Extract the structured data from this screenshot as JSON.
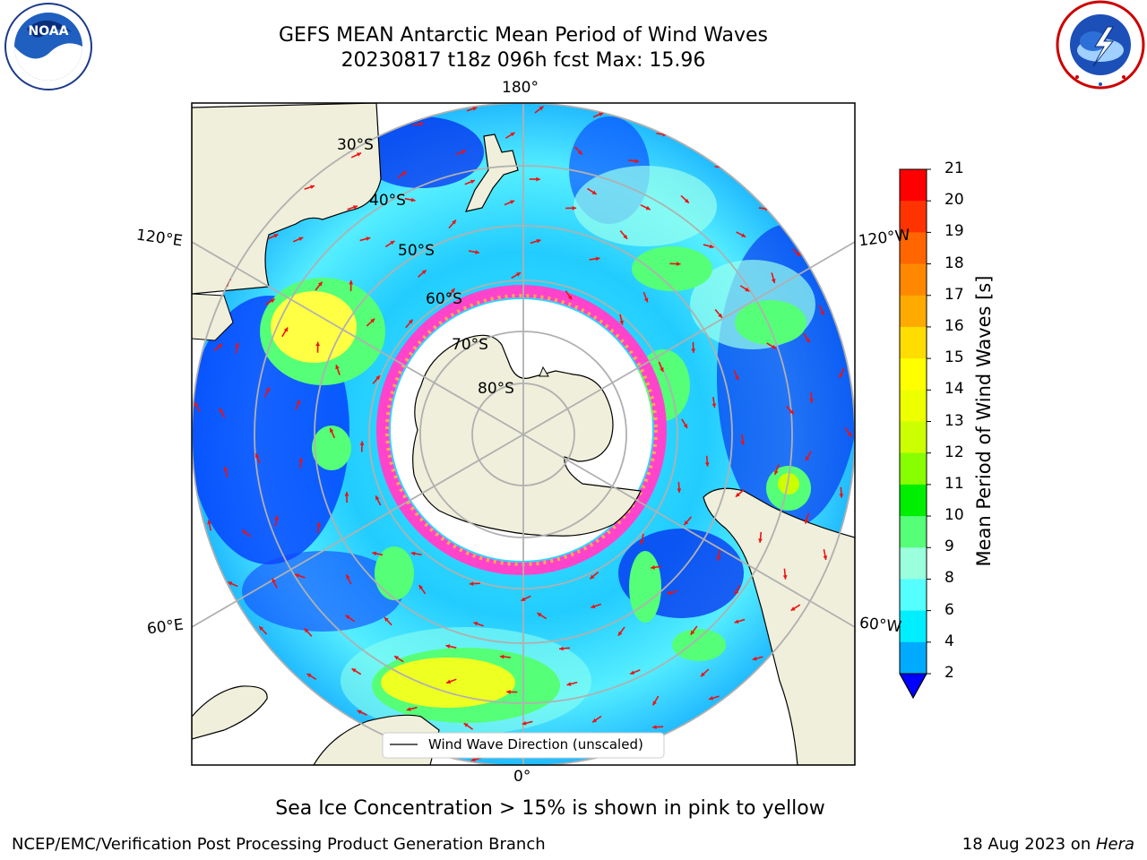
{
  "header": {
    "title_line1": "GEFS MEAN Antarctic Mean Period of Wind Waves",
    "title_line2": "20230817 t18z 096h fcst   Max: 15.96"
  },
  "logos": {
    "left": "noaa-logo",
    "left_text": "NOAA",
    "left_ring_text": "NATIONAL OCEANIC AND ATMOSPHERIC ADMINISTRATION · U.S. DEPARTMENT OF COMMERCE",
    "right": "nws-logo",
    "right_ring_text": "NATIONAL WEATHER SERVICE"
  },
  "map": {
    "projection": "south-polar-stereographic",
    "longitude_labels": {
      "top": "180°",
      "bottom": "0°",
      "left_upper": "120°E",
      "left_lower": "60°E",
      "right_upper": "120°W",
      "right_lower": "60°W"
    },
    "latitude_labels": [
      "30°S",
      "40°S",
      "50°S",
      "60°S",
      "70°S",
      "80°S"
    ],
    "legend_label": "Wind Wave Direction (unscaled)"
  },
  "colorbar": {
    "label": "Mean Period of Wind Waves [s]",
    "ticks": [
      "21",
      "20",
      "19",
      "18",
      "17",
      "16",
      "15",
      "14",
      "13",
      "12",
      "11",
      "10",
      "9",
      "8",
      "6",
      "4",
      "2"
    ],
    "colors": [
      "#ff0000",
      "#ff3300",
      "#ff6600",
      "#ff8800",
      "#ffaa00",
      "#ffdd00",
      "#ffff00",
      "#eeff00",
      "#ccff00",
      "#88ff00",
      "#00ee00",
      "#55ff77",
      "#99ffdd",
      "#55ffff",
      "#00eeff",
      "#00aaff",
      "#0000ff"
    ],
    "extend_color": "#0000ff"
  },
  "caption": "Sea Ice Concentration > 15% is shown in pink to yellow",
  "footer": {
    "left": "NCEP/EMC/Verification Post Processing Product Generation Branch",
    "right_prefix": "18 Aug 2023 on ",
    "right_machine": "Hera"
  }
}
